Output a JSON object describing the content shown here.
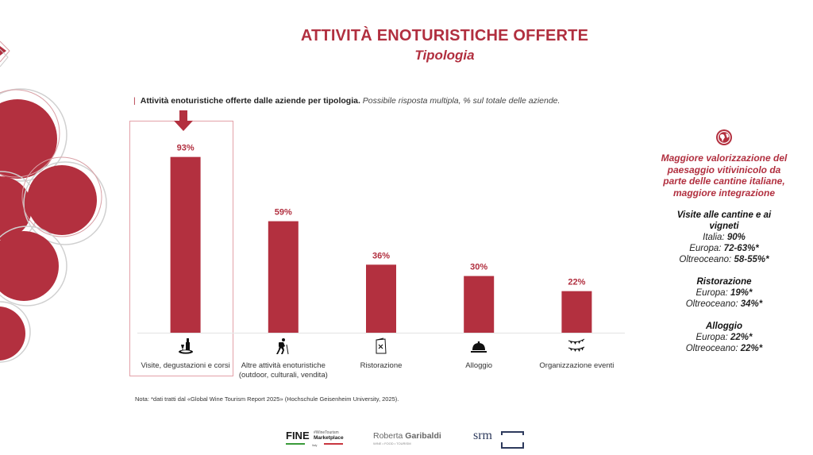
{
  "header": {
    "title": "ATTIVITÀ ENOTURISTICHE OFFERTE",
    "subtitle": "Tipologia"
  },
  "chart_description": {
    "bold": "Attività enoturistiche offerte dalle aziende per tipologia.",
    "italic": "Possibile risposta multipla, % sul totale delle aziende."
  },
  "colors": {
    "accent": "#b12f3f",
    "bar": "#b3303f",
    "axis": "#e6e6e6",
    "highlight_box": "#e3a1a8"
  },
  "chart_data": {
    "type": "bar",
    "title": "Attività enoturistiche offerte dalle aziende per tipologia",
    "xlabel": "",
    "ylabel": "% sul totale delle aziende",
    "ylim": [
      0,
      100
    ],
    "grid": false,
    "categories": [
      "Visite, degustazioni e corsi",
      "Altre attività enoturistiche (outdoor, culturali, vendita)",
      "Ristorazione",
      "Alloggio",
      "Organizzazione eventi"
    ],
    "category_lines": [
      [
        "Visite, degustazioni e corsi"
      ],
      [
        "Altre attività enoturistiche",
        "(outdoor, culturali, vendita)"
      ],
      [
        "Ristorazione"
      ],
      [
        "Alloggio"
      ],
      [
        "Organizzazione eventi"
      ]
    ],
    "category_icons": [
      "wine-tasting-icon",
      "hiking-icon",
      "menu-icon",
      "service-bell-icon",
      "bunting-icon"
    ],
    "values": [
      93,
      59,
      36,
      30,
      22
    ],
    "value_labels": [
      "93%",
      "59%",
      "36%",
      "30%",
      "22%"
    ],
    "highlighted_category_index": 0,
    "annotation": "down-arrow over highlighted category"
  },
  "right_panel": {
    "icon": "globe-icon",
    "highlight": [
      "Maggiore valorizzazione del",
      "paesaggio vitivinicolo da",
      "parte delle cantine italiane,",
      "maggiore integrazione"
    ],
    "blocks": [
      {
        "title": [
          "Visite alle cantine e ai",
          "vigneti"
        ],
        "rows": [
          {
            "label": "Italia: ",
            "value": "90%"
          },
          {
            "label": "Europa: ",
            "value": "72-63%*"
          },
          {
            "label": "Oltreoceano: ",
            "value": "58-55%*"
          }
        ]
      },
      {
        "title": [
          "Ristorazione"
        ],
        "rows": [
          {
            "label": "Europa: ",
            "value": "19%*"
          },
          {
            "label": "Oltreoceano: ",
            "value": "34%*"
          }
        ]
      },
      {
        "title": [
          "Alloggio"
        ],
        "rows": [
          {
            "label": "Europa: ",
            "value": "22%*"
          },
          {
            "label": "Oltreoceano: ",
            "value": "22%*"
          }
        ]
      }
    ]
  },
  "footer": {
    "note": "Nota: *dati tratti dal «Global Wine Tourism Report 2025» (Hochschule Geisenheim University, 2025).",
    "logos": {
      "fine_main": "FINE",
      "fine_top": "#WineTourism",
      "fine_bottom": "Marketplace",
      "fine_country": "Italy",
      "rg_name_light": "Roberta ",
      "rg_name_bold": "Garibaldi",
      "rg_tagline": "WINE • FOOD • TOURISM",
      "srm": "srm"
    }
  }
}
